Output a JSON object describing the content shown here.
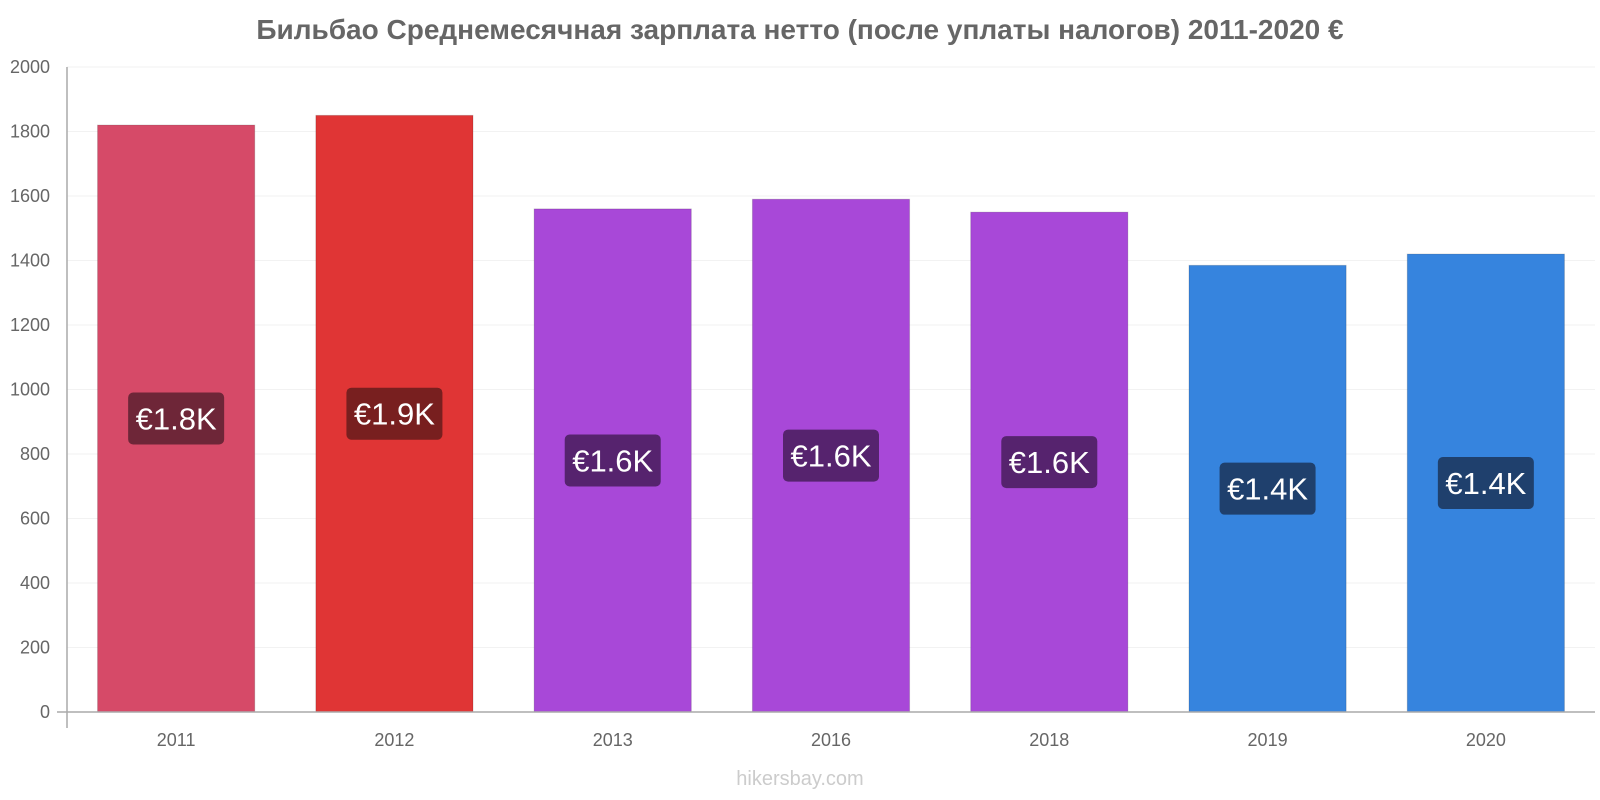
{
  "chart_data": {
    "type": "bar",
    "title": "Бильбао Среднемесячная зарплата нетто (после уплаты налогов) 2011-2020 €",
    "categories": [
      "2011",
      "2012",
      "2013",
      "2016",
      "2018",
      "2019",
      "2020"
    ],
    "values": [
      1820,
      1850,
      1560,
      1590,
      1550,
      1385,
      1420
    ],
    "data_labels": [
      "€1.8K",
      "€1.9K",
      "€1.6K",
      "€1.6K",
      "€1.6K",
      "€1.4K",
      "€1.4K"
    ],
    "ylim": [
      0,
      2000
    ],
    "yticks": [
      0,
      200,
      400,
      600,
      800,
      1000,
      1200,
      1400,
      1600,
      1800,
      2000
    ],
    "xlabel": "",
    "ylabel": "",
    "grid": true,
    "legend": "none",
    "colors": {
      "bars": [
        "#d64a68",
        "#e03535",
        "#a848d8",
        "#a848d8",
        "#a848d8",
        "#3684de",
        "#3684de"
      ],
      "label_backgrounds": [
        "#6e2638",
        "#781f1f",
        "#56236e",
        "#56236e",
        "#56236e",
        "#1f406d",
        "#1f406d"
      ],
      "label_text": "#ffffff",
      "axis": "#aaaaaa",
      "grid": "#f2f2f2",
      "tick_text": "#666666"
    }
  },
  "watermark": "hikersbay.com"
}
